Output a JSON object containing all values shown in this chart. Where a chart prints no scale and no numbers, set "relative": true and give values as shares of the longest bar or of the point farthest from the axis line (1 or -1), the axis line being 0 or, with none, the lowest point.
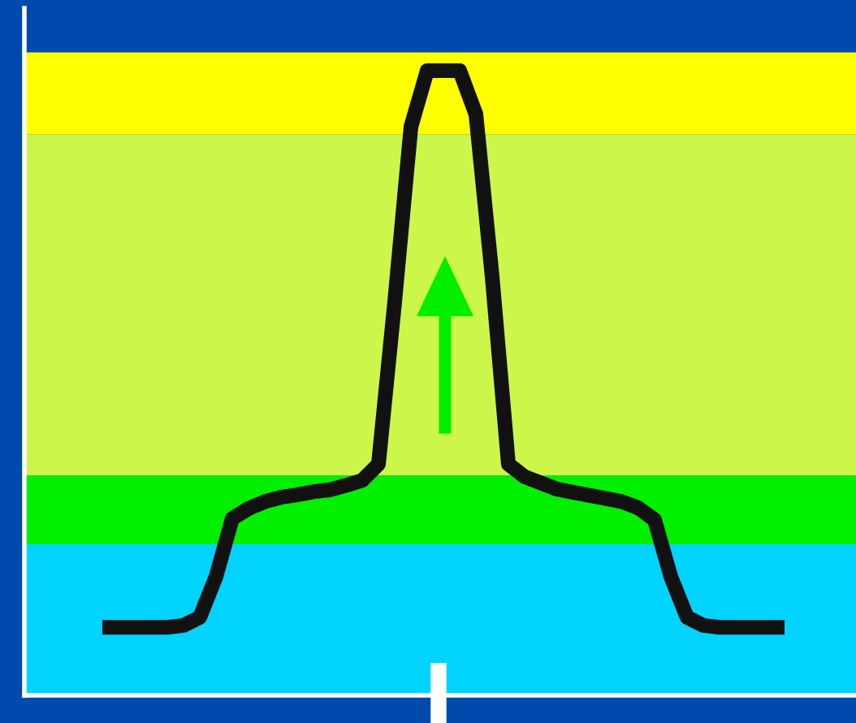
{
  "chart_data": {
    "type": "line",
    "relative": true,
    "color": "#111111",
    "line_style": "solid",
    "marker": "none",
    "legend": false,
    "categories": [
      null,
      null,
      null,
      null,
      null,
      null,
      null,
      null,
      null,
      null,
      null,
      null,
      null,
      null,
      null,
      null,
      null,
      null,
      null,
      null,
      null,
      null,
      null,
      null,
      null,
      null,
      null,
      null,
      null,
      null,
      null,
      null,
      null,
      null,
      null,
      null,
      null,
      null,
      null,
      null,
      null,
      null,
      null
    ],
    "values": [
      0.109,
      0.109,
      0.109,
      0.109,
      0.109,
      0.112,
      0.125,
      0.19,
      0.283,
      0.299,
      0.31,
      0.317,
      0.321,
      0.326,
      0.329,
      0.336,
      0.344,
      0.37,
      0.63,
      0.91,
      1.0,
      1.0,
      1.0,
      0.93,
      0.67,
      0.37,
      0.35,
      0.34,
      0.33,
      0.325,
      0.32,
      0.315,
      0.31,
      0.3,
      0.281,
      0.19,
      0.125,
      0.112,
      0.109,
      0.109,
      0.109,
      0.109,
      0.109
    ],
    "bands": [
      {
        "axis": "y",
        "from": 0,
        "to": 0.242,
        "color": "#00d4ff"
      },
      {
        "axis": "y",
        "from": 0.242,
        "to": 0.352,
        "color": "#00f000"
      },
      {
        "axis": "y",
        "from": 0.352,
        "to": 0.898,
        "color": "#ccf74a"
      },
      {
        "axis": "y",
        "from": 0.898,
        "to": 1.029,
        "color": "#ffff00"
      }
    ]
  }
}
